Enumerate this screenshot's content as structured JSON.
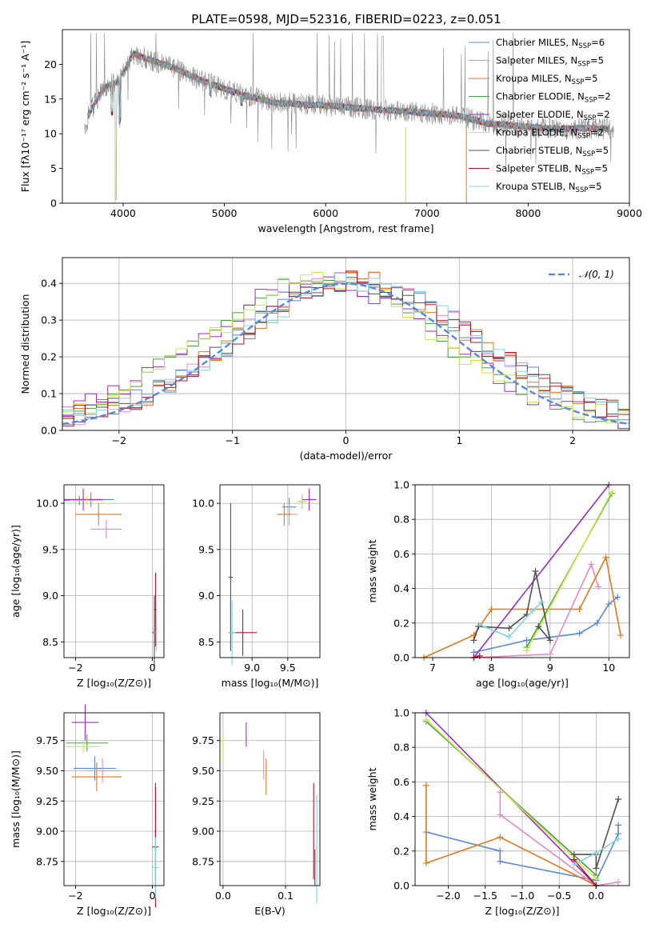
{
  "colors": {
    "chabrier_miles": "#5b87d6",
    "salpeter_miles": "#e58ac9",
    "kroupa_miles": "#dd7a1f",
    "chabrier_elodie": "#4a9e4a",
    "salpeter_elodie": "#9b2ebd",
    "kroupa_elodie": "#c9e84a",
    "chabrier_stelib": "#505050",
    "salpeter_stelib": "#b2182b",
    "kroupa_stelib": "#86d2e0",
    "normal_curve": "#5b87d6",
    "grid": "#b0b0b0"
  },
  "chart_data": [
    {
      "id": "spectrum",
      "type": "line",
      "title": "PLATE=0598, MJD=52316, FIBERID=0223, z=0.051",
      "xlabel": "wavelength [Angstrom, rest frame]",
      "ylabel": "Flux [fλ10⁻¹⁷ erg cm⁻² s⁻¹ A⁻¹]",
      "xlim": [
        3400,
        9000
      ],
      "ylim": [
        0,
        25
      ],
      "xticks": [
        4000,
        5000,
        6000,
        7000,
        8000,
        9000
      ],
      "yticks": [
        0,
        5,
        10,
        15,
        20
      ],
      "grid": false,
      "legend_position": "top-right",
      "legend": [
        {
          "label": "Chabrier MILES, N",
          "sub": "SSP",
          "val": "=6",
          "color": "#5b87d6"
        },
        {
          "label": "Salpeter MILES, N",
          "sub": "SSP",
          "val": "=5",
          "color": "#e58ac9"
        },
        {
          "label": "Kroupa MILES, N",
          "sub": "SSP",
          "val": "=5",
          "color": "#dd7a1f"
        },
        {
          "label": "Chabrier ELODIE, N",
          "sub": "SSP",
          "val": "=2",
          "color": "#4a9e4a"
        },
        {
          "label": "Salpeter ELODIE, N",
          "sub": "SSP",
          "val": "=2",
          "color": "#9b2ebd"
        },
        {
          "label": "Kroupa ELODIE, N",
          "sub": "SSP",
          "val": "=2",
          "color": "#c9e84a"
        },
        {
          "label": "Chabrier STELIB, N",
          "sub": "SSP",
          "val": "=5",
          "color": "#505050"
        },
        {
          "label": "Salpeter STELIB, N",
          "sub": "SSP",
          "val": "=5",
          "color": "#b2182b"
        },
        {
          "label": "Kroupa STELIB, N",
          "sub": "SSP",
          "val": "=5",
          "color": "#86d2e0"
        }
      ],
      "continuum": {
        "x": [
          3650,
          3800,
          3950,
          4100,
          4300,
          4500,
          4800,
          5000,
          5200,
          5500,
          5800,
          6100,
          6400,
          6700,
          7000,
          7300,
          7600,
          8000,
          8300,
          8600,
          8800
        ],
        "y": [
          12.5,
          16.5,
          17.5,
          21.5,
          20.5,
          19.5,
          17.5,
          16.5,
          15.5,
          14.5,
          14.2,
          14.0,
          13.6,
          13.3,
          13.0,
          12.6,
          11.5,
          11.0,
          10.7,
          10.8,
          10.7
        ]
      }
    },
    {
      "id": "residuals",
      "type": "bar",
      "xlabel": "(data-model)/error",
      "ylabel": "Normed distribution",
      "xlim": [
        -2.5,
        2.5
      ],
      "ylim": [
        0,
        0.47
      ],
      "xticks": [
        -2,
        -1,
        0,
        1,
        2
      ],
      "yticks": [
        0.0,
        0.1,
        0.2,
        0.3,
        0.4
      ],
      "grid": true,
      "legend_position": "top-right",
      "legend": [
        {
          "label": "𝒩(0, 1)",
          "color": "#5b87d6"
        }
      ],
      "bin_width": 0.1,
      "bins_start": -2.5,
      "normal_curve": {
        "mean": 0,
        "sigma": 1
      }
    },
    {
      "id": "age_vs_z",
      "type": "scatter",
      "xlabel": "Z [log₁₀(Z/Z⊙)]",
      "ylabel": "age  [log₁₀(age/yr)]",
      "xlim": [
        -2.3,
        0.3
      ],
      "ylim": [
        8.33,
        10.2
      ],
      "xticks": [
        -2,
        0
      ],
      "yticks": [
        8.5,
        9.0,
        9.5,
        10.0
      ],
      "grid": true,
      "points": [
        {
          "x": -1.6,
          "y": 10.04,
          "xerr": 0.6,
          "yerr": 0.08,
          "c": "#5b87d6"
        },
        {
          "x": -1.2,
          "y": 9.72,
          "xerr": 0.4,
          "yerr": 0.1,
          "c": "#e58ac9"
        },
        {
          "x": -1.4,
          "y": 9.88,
          "xerr": 0.6,
          "yerr": 0.12,
          "c": "#dd7a1f"
        },
        {
          "x": -1.9,
          "y": 10.03,
          "xerr": 0.4,
          "yerr": 0.05,
          "c": "#4a9e4a"
        },
        {
          "x": -1.8,
          "y": 10.04,
          "xerr": 0.5,
          "yerr": 0.12,
          "c": "#9b2ebd"
        },
        {
          "x": -1.7,
          "y": 10.03,
          "xerr": 0.45,
          "yerr": 0.05,
          "c": "#c9e84a"
        },
        {
          "x": 0.05,
          "y": 8.6,
          "xerr": 0.05,
          "yerr": 0.4,
          "c": "#505050"
        },
        {
          "x": 0.08,
          "y": 8.85,
          "xerr": 0.03,
          "yerr": 0.4,
          "c": "#b2182b"
        },
        {
          "x": 0.1,
          "y": 8.6,
          "xerr": 0.05,
          "yerr": 0.2,
          "c": "#86d2e0"
        }
      ]
    },
    {
      "id": "age_vs_mass",
      "type": "scatter",
      "xlabel": "mass [log₁₀(M/M⊙)]",
      "ylabel": "",
      "xlim": [
        8.55,
        9.95
      ],
      "ylim": [
        8.33,
        10.2
      ],
      "xticks": [
        9.0,
        9.5
      ],
      "yticks": [
        8.5,
        9.0,
        9.5,
        10.0
      ],
      "grid": true,
      "points": [
        {
          "x": 9.52,
          "y": 9.96,
          "xerr": 0.1,
          "yerr": 0.1,
          "c": "#5b87d6"
        },
        {
          "x": 9.52,
          "y": 9.88,
          "xerr": 0.12,
          "yerr": 0.12,
          "c": "#e58ac9"
        },
        {
          "x": 9.45,
          "y": 9.88,
          "xerr": 0.1,
          "yerr": 0.12,
          "c": "#dd7a1f"
        },
        {
          "x": 9.7,
          "y": 10.02,
          "xerr": 0.05,
          "yerr": 0.08,
          "c": "#4a9e4a"
        },
        {
          "x": 9.8,
          "y": 10.04,
          "xerr": 0.1,
          "yerr": 0.12,
          "c": "#9b2ebd"
        },
        {
          "x": 9.7,
          "y": 10.02,
          "xerr": 0.07,
          "yerr": 0.08,
          "c": "#c9e84a"
        },
        {
          "x": 8.7,
          "y": 9.2,
          "xerr": 0.03,
          "yerr": 0.8,
          "c": "#505050"
        },
        {
          "x": 8.87,
          "y": 8.6,
          "xerr": 0.2,
          "yerr": 0.25,
          "c": "#b2182b"
        },
        {
          "x": 8.72,
          "y": 8.6,
          "xerr": 0.05,
          "yerr": 0.35,
          "c": "#86d2e0"
        }
      ]
    },
    {
      "id": "mw_vs_age",
      "type": "line",
      "xlabel": "age  [log₁₀(age/yr)]",
      "ylabel": "mass weight",
      "xlim": [
        6.7,
        10.35
      ],
      "ylim": [
        0,
        1
      ],
      "xticks": [
        7,
        8,
        9,
        10
      ],
      "yticks": [
        0.0,
        0.2,
        0.4,
        0.6,
        0.8,
        1.0
      ],
      "grid": true,
      "series": [
        {
          "c": "#5b87d6",
          "x": [
            7.7,
            8.6,
            9.5,
            9.8,
            10.0,
            10.15
          ],
          "y": [
            0.03,
            0.1,
            0.14,
            0.2,
            0.31,
            0.35
          ]
        },
        {
          "c": "#e58ac9",
          "x": [
            7.7,
            9.0,
            9.7,
            9.82
          ],
          "y": [
            0.0,
            0.02,
            0.54,
            0.41
          ]
        },
        {
          "c": "#dd7a1f",
          "x": [
            6.85,
            7.7,
            8.0,
            9.5,
            9.95,
            10.2
          ],
          "y": [
            0.0,
            0.13,
            0.28,
            0.28,
            0.58,
            0.13
          ]
        },
        {
          "c": "#4a9e4a",
          "x": [
            8.6,
            10.05
          ],
          "y": [
            0.06,
            0.95
          ]
        },
        {
          "c": "#9b2ebd",
          "x": [
            7.7,
            10.0
          ],
          "y": [
            0.0,
            1.0
          ]
        },
        {
          "c": "#c9e84a",
          "x": [
            8.6,
            10.05
          ],
          "y": [
            0.04,
            0.96
          ]
        },
        {
          "c": "#505050",
          "x": [
            7.7,
            7.78,
            8.3,
            8.6,
            8.75,
            9.0,
            8.8
          ],
          "y": [
            0.1,
            0.18,
            0.17,
            0.25,
            0.5,
            0.1,
            0.18
          ]
        },
        {
          "c": "#b2182b",
          "x": [
            7.7,
            7.8
          ],
          "y": [
            0.0,
            0.01
          ]
        },
        {
          "c": "#86d2e0",
          "x": [
            7.8,
            8.3,
            8.7,
            8.85
          ],
          "y": [
            0.19,
            0.12,
            0.27,
            0.32
          ]
        }
      ]
    },
    {
      "id": "mass_vs_z",
      "type": "scatter",
      "xlabel": "Z [log₁₀(Z/Z⊙)]",
      "ylabel": "mass [log₁₀(M/M⊙)]",
      "xlim": [
        -2.3,
        0.3
      ],
      "ylim": [
        8.55,
        9.98
      ],
      "xticks": [
        -2,
        0
      ],
      "yticks": [
        8.75,
        9.0,
        9.25,
        9.5,
        9.75
      ],
      "grid": true,
      "points": [
        {
          "x": -1.5,
          "y": 9.52,
          "xerr": 0.55,
          "yerr": 0.1,
          "c": "#5b87d6"
        },
        {
          "x": -1.3,
          "y": 9.5,
          "xerr": 0.45,
          "yerr": 0.1,
          "c": "#e58ac9"
        },
        {
          "x": -1.45,
          "y": 9.45,
          "xerr": 0.65,
          "yerr": 0.12,
          "c": "#dd7a1f"
        },
        {
          "x": -1.7,
          "y": 9.73,
          "xerr": 0.55,
          "yerr": 0.07,
          "c": "#4a9e4a"
        },
        {
          "x": -1.75,
          "y": 9.9,
          "xerr": 0.35,
          "yerr": 0.15,
          "c": "#9b2ebd"
        },
        {
          "x": -1.8,
          "y": 9.7,
          "xerr": 0.45,
          "yerr": 0.05,
          "c": "#c9e84a"
        },
        {
          "x": 0.08,
          "y": 9.0,
          "xerr": 0.02,
          "yerr": 0.4,
          "c": "#505050"
        },
        {
          "x": 0.08,
          "y": 8.87,
          "xerr": 0.08,
          "yerr": 0.5,
          "c": "#b2182b"
        },
        {
          "x": 0.08,
          "y": 8.7,
          "xerr": 0.1,
          "yerr": 0.25,
          "c": "#86d2e0"
        }
      ]
    },
    {
      "id": "mass_vs_ebv",
      "type": "scatter",
      "xlabel": "E(B-V)",
      "ylabel": "",
      "xlim": [
        -0.005,
        0.155
      ],
      "ylim": [
        8.55,
        9.98
      ],
      "xticks": [
        0.0,
        0.1
      ],
      "yticks": [
        8.75,
        9.0,
        9.25,
        9.5,
        9.75
      ],
      "grid": true,
      "points": [
        {
          "x": 0.0,
          "y": 9.68,
          "yerr": 0.1,
          "c": "#c9e84a"
        },
        {
          "x": 0.037,
          "y": 9.8,
          "yerr": 0.1,
          "c": "#9b2ebd"
        },
        {
          "x": 0.065,
          "y": 9.55,
          "yerr": 0.12,
          "c": "#e58ac9"
        },
        {
          "x": 0.069,
          "y": 9.45,
          "yerr": 0.15,
          "c": "#dd7a1f"
        },
        {
          "x": 0.145,
          "y": 9.0,
          "yerr": 0.4,
          "c": "#b2182b"
        },
        {
          "x": 0.15,
          "y": 8.85,
          "yerr": 0.45,
          "c": "#86d2e0"
        },
        {
          "x": 0.147,
          "y": 8.7,
          "yerr": 0.15,
          "c": "#505050"
        }
      ]
    },
    {
      "id": "mw_vs_z",
      "type": "line",
      "xlabel": "Z [log₁₀(Z/Z⊙)]",
      "ylabel": "mass weight",
      "xlim": [
        -2.45,
        0.45
      ],
      "ylim": [
        0,
        1
      ],
      "xticks": [
        -2.0,
        -1.5,
        -1.0,
        -0.5,
        0.0
      ],
      "yticks": [
        0.0,
        0.2,
        0.4,
        0.6,
        0.8,
        1.0
      ],
      "grid": true,
      "series": [
        {
          "c": "#5b87d6",
          "x": [
            -2.3,
            -1.3,
            -1.3,
            0.0,
            0.3,
            0.3
          ],
          "y": [
            0.31,
            0.2,
            0.14,
            0.03,
            0.3,
            0.35
          ]
        },
        {
          "c": "#e58ac9",
          "x": [
            -1.3,
            -1.3,
            0.0,
            0.3
          ],
          "y": [
            0.54,
            0.41,
            0.0,
            0.02
          ]
        },
        {
          "c": "#dd7a1f",
          "x": [
            -2.3,
            -2.3,
            -1.3,
            0.0
          ],
          "y": [
            0.58,
            0.13,
            0.28,
            0.0
          ]
        },
        {
          "c": "#4a9e4a",
          "x": [
            -2.3,
            0.0
          ],
          "y": [
            0.95,
            0.06
          ]
        },
        {
          "c": "#9b2ebd",
          "x": [
            -2.3,
            0.0
          ],
          "y": [
            1.0,
            0.0
          ]
        },
        {
          "c": "#c9e84a",
          "x": [
            -2.3,
            0.0
          ],
          "y": [
            0.96,
            0.04
          ]
        },
        {
          "c": "#505050",
          "x": [
            -0.3,
            0.0,
            0.0,
            0.3
          ],
          "y": [
            0.18,
            0.18,
            0.1,
            0.5
          ]
        },
        {
          "c": "#b2182b",
          "x": [
            -0.3,
            0.0
          ],
          "y": [
            0.15,
            0.0
          ]
        },
        {
          "c": "#86d2e0",
          "x": [
            -0.3,
            0.0,
            0.3
          ],
          "y": [
            0.12,
            0.19,
            0.27
          ]
        }
      ]
    }
  ]
}
